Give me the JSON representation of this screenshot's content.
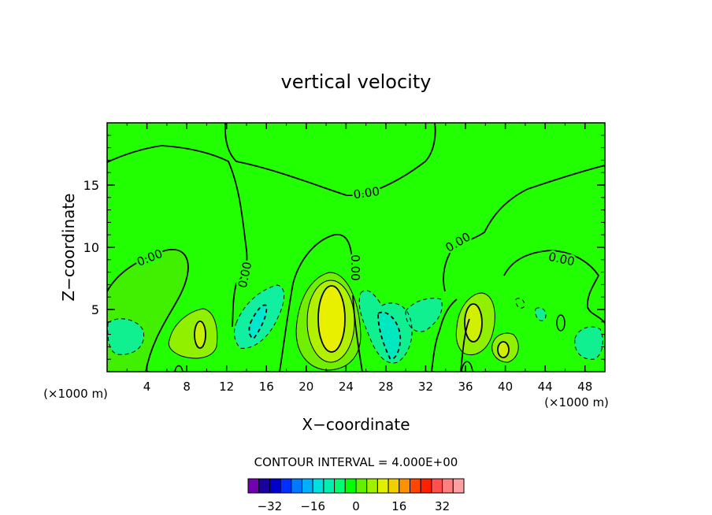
{
  "chart_data": {
    "type": "contour",
    "title": "vertical velocity",
    "xlabel": "X−coordinate",
    "ylabel": "Z−coordinate",
    "x_units_left": "(×1000 m)",
    "x_units_right": "(×1000 m)",
    "xlim": [
      0,
      50
    ],
    "ylim": [
      0,
      20
    ],
    "x_ticks": [
      "4",
      "8",
      "12",
      "16",
      "20",
      "24",
      "28",
      "32",
      "36",
      "40",
      "44",
      "48"
    ],
    "y_ticks": [
      "5",
      "10",
      "15"
    ],
    "contour_interval_text": "CONTOUR INTERVAL = 4.000E+00",
    "contour_labels": [
      "0.00",
      "0.00",
      "0.00",
      "0.00",
      "0.00",
      "0.00"
    ],
    "colorbar": {
      "colors": [
        "#7000b0",
        "#1a00a0",
        "#0000cd",
        "#0030ff",
        "#0078ff",
        "#00b0ff",
        "#00e0e0",
        "#00f0b0",
        "#00ff70",
        "#00ff00",
        "#60f000",
        "#a0f000",
        "#e0f000",
        "#f0d000",
        "#ff9000",
        "#ff4500",
        "#ff2000",
        "#ff5050",
        "#ff8080",
        "#ffa0a0"
      ],
      "labels": [
        "−32",
        "−16",
        "0",
        "16",
        "32"
      ],
      "label_values": [
        -32,
        -16,
        0,
        16,
        32
      ],
      "min": -40,
      "max": 40
    },
    "features": [
      {
        "x": 22.2,
        "z": 4.4,
        "sign": "positive",
        "max": 16
      },
      {
        "x": 36.8,
        "z": 4.0,
        "sign": "positive",
        "max": 12
      },
      {
        "x": 9.4,
        "z": 3.0,
        "sign": "positive",
        "max": 8
      },
      {
        "x": 40.0,
        "z": 1.8,
        "sign": "positive",
        "max": 8
      },
      {
        "x": 14.3,
        "z": 3.7,
        "sign": "negative",
        "min": -12
      },
      {
        "x": 29.4,
        "z": 2.6,
        "sign": "negative",
        "min": -12
      },
      {
        "x": 1.4,
        "z": 2.6,
        "sign": "negative",
        "min": -4
      },
      {
        "x": 48.6,
        "z": 2.4,
        "sign": "negative",
        "min": -4
      }
    ]
  }
}
